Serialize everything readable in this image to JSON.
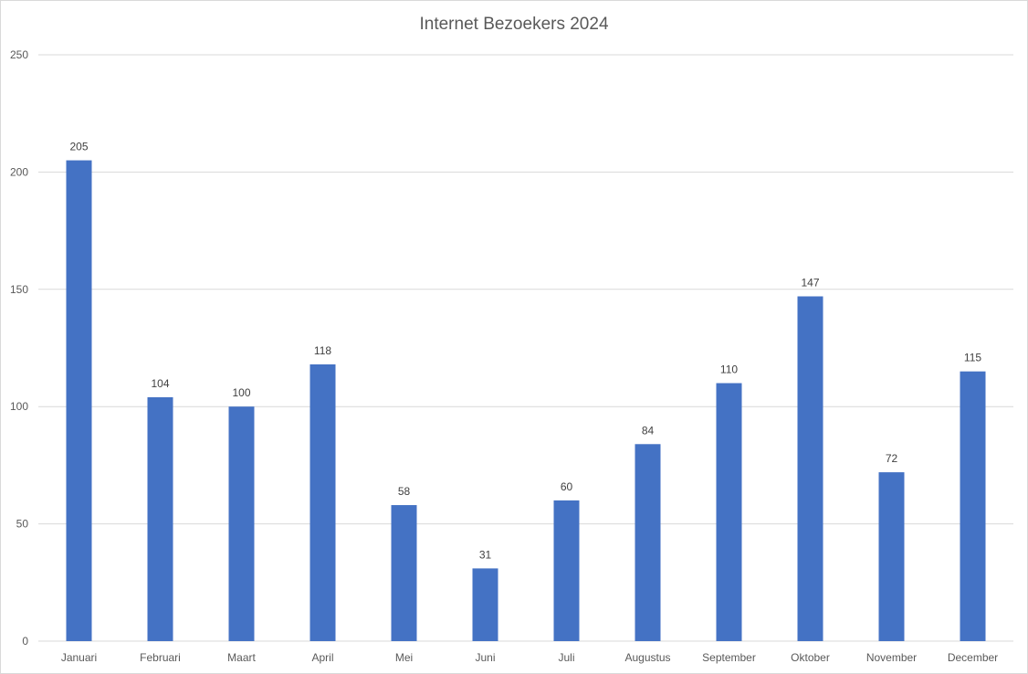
{
  "chart_data": {
    "type": "bar",
    "title": "Internet Bezoekers 2024",
    "xlabel": "",
    "ylabel": "",
    "categories": [
      "Januari",
      "Februari",
      "Maart",
      "April",
      "Mei",
      "Juni",
      "Juli",
      "Augustus",
      "September",
      "Oktober",
      "November",
      "December"
    ],
    "values": [
      205,
      104,
      100,
      118,
      58,
      31,
      60,
      84,
      110,
      147,
      72,
      115
    ],
    "ylim": [
      0,
      250
    ],
    "yticks": [
      0,
      50,
      100,
      150,
      200,
      250
    ],
    "data_labels": true,
    "grid": true,
    "legend": "none",
    "colors": {
      "bar": "#4472c4",
      "grid": "#d9d9d9",
      "text": "#595959"
    }
  }
}
